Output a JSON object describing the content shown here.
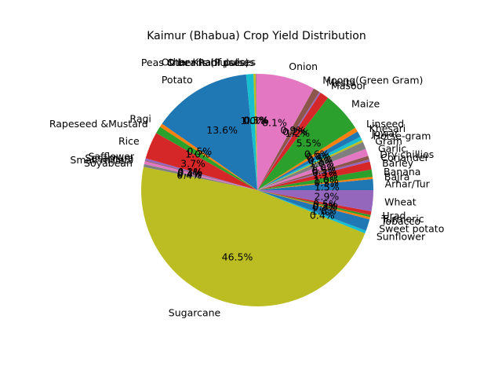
{
  "chart_data": {
    "type": "pie",
    "title": "Kaimur (Bhabua) Crop Yield Distribution",
    "start_angle_deg": 0,
    "direction": "counterclockwise",
    "pct_format": "%1.1f%%",
    "slices": [
      {
        "label": "Arhar/Tur",
        "percent": 1.5,
        "color": "#1f77b4"
      },
      {
        "label": "Bajra",
        "percent": 0.3,
        "color": "#ff7f0e"
      },
      {
        "label": "Banana",
        "percent": 1.0,
        "color": "#2ca02c"
      },
      {
        "label": "Barley",
        "percent": 1.1,
        "color": "#d62728"
      },
      {
        "label": "Coriander",
        "percent": 0.3,
        "color": "#9467bd"
      },
      {
        "label": "Dry chillies",
        "percent": 0.5,
        "color": "#8c564b"
      },
      {
        "label": "Garlic",
        "percent": 1.0,
        "color": "#e377c2"
      },
      {
        "label": "Gram",
        "percent": 1.0,
        "color": "#7f7f7f"
      },
      {
        "label": "Horse-gram",
        "percent": 0.3,
        "color": "#bcbd22"
      },
      {
        "label": "Jowar",
        "percent": 0.5,
        "color": "#17becf"
      },
      {
        "label": "Khesari",
        "percent": 0.8,
        "color": "#1f77b4"
      },
      {
        "label": "Linseed",
        "percent": 0.6,
        "color": "#ff7f0e"
      },
      {
        "label": "Maize",
        "percent": 5.5,
        "color": "#2ca02c"
      },
      {
        "label": "Masoor",
        "percent": 1.2,
        "color": "#d62728"
      },
      {
        "label": "Mesta",
        "percent": 0.2,
        "color": "#9467bd"
      },
      {
        "label": "Moong(Green Gram)",
        "percent": 0.9,
        "color": "#8c564b"
      },
      {
        "label": "Onion",
        "percent": 8.1,
        "color": "#e377c2"
      },
      {
        "label": "Other Kharif pulses",
        "percent": 0.1,
        "color": "#7f7f7f"
      },
      {
        "label": "Other Rabi pulses",
        "percent": 0.3,
        "color": "#bcbd22"
      },
      {
        "label": "Peas & beans (Pulses)",
        "percent": 1.0,
        "color": "#17becf"
      },
      {
        "label": "Potato",
        "percent": 13.6,
        "color": "#1f77b4"
      },
      {
        "label": "Ragi",
        "percent": 0.5,
        "color": "#ff7f0e"
      },
      {
        "label": "Rapeseed &Mustard",
        "percent": 1.0,
        "color": "#2ca02c"
      },
      {
        "label": "Rice",
        "percent": 3.7,
        "color": "#d62728"
      },
      {
        "label": "Safflower",
        "percent": 0.3,
        "color": "#9467bd"
      },
      {
        "label": "Sesamum",
        "percent": 0.1,
        "color": "#8c564b"
      },
      {
        "label": "Small millets",
        "percent": 0.4,
        "color": "#e377c2"
      },
      {
        "label": "Soyabean",
        "percent": 0.4,
        "color": "#7f7f7f"
      },
      {
        "label": "Sugarcane",
        "percent": 46.5,
        "color": "#bcbd22"
      },
      {
        "label": "Sunflower",
        "percent": 0.4,
        "color": "#17becf"
      },
      {
        "label": "Sweet potato",
        "percent": 1.6,
        "color": "#1f77b4"
      },
      {
        "label": "Tobacco",
        "percent": 0.3,
        "color": "#ff7f0e"
      },
      {
        "label": "Turmeric",
        "percent": 0.3,
        "color": "#2ca02c"
      },
      {
        "label": "Urad",
        "percent": 0.5,
        "color": "#d62728"
      },
      {
        "label": "Wheat",
        "percent": 2.9,
        "color": "#9467bd"
      }
    ]
  }
}
